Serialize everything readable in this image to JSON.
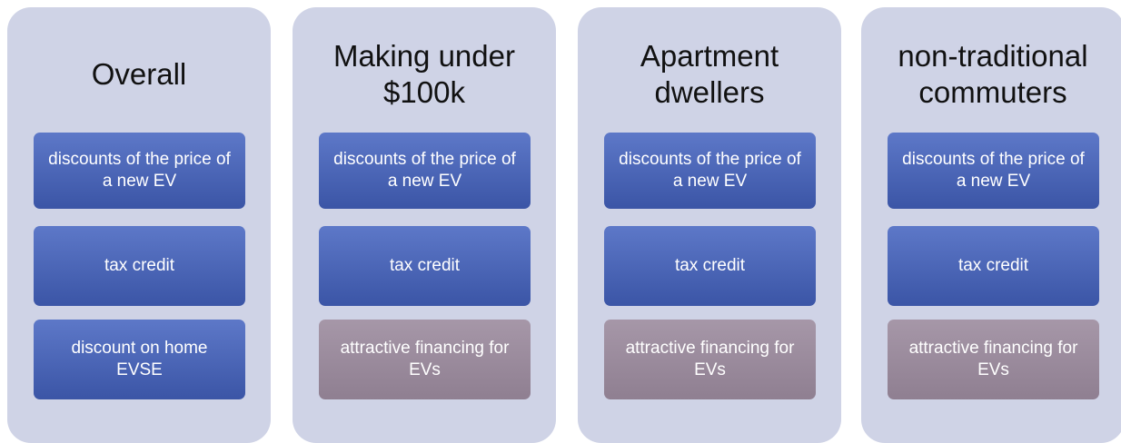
{
  "columns": [
    {
      "title": "Overall",
      "items": [
        {
          "label": "discounts of the price of a new EV",
          "color": "blue"
        },
        {
          "label": "tax credit",
          "color": "blue"
        },
        {
          "label": "discount on home EVSE",
          "color": "blue"
        }
      ]
    },
    {
      "title": "Making under $100k",
      "items": [
        {
          "label": "discounts of the price of a new EV",
          "color": "blue"
        },
        {
          "label": "tax credit",
          "color": "blue"
        },
        {
          "label": "attractive financing for EVs",
          "color": "mauve"
        }
      ]
    },
    {
      "title": "Apartment dwellers",
      "items": [
        {
          "label": "discounts of the price of a new EV",
          "color": "blue"
        },
        {
          "label": "tax credit",
          "color": "blue"
        },
        {
          "label": "attractive financing for EVs",
          "color": "mauve"
        }
      ]
    },
    {
      "title": "non-traditional commuters",
      "items": [
        {
          "label": "discounts of the price of a new EV",
          "color": "blue"
        },
        {
          "label": "tax credit",
          "color": "blue"
        },
        {
          "label": "attractive financing for EVs",
          "color": "mauve"
        }
      ]
    }
  ]
}
